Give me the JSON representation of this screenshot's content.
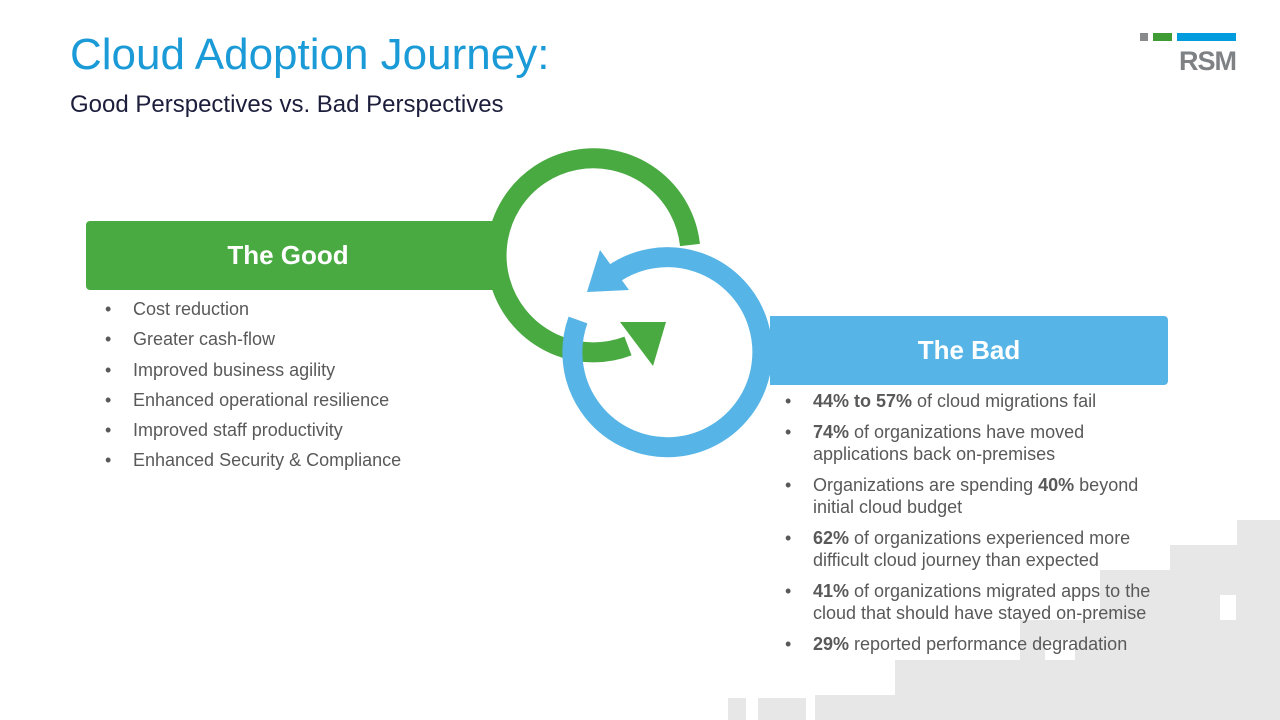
{
  "header": {
    "title": "Cloud Adoption Journey:",
    "subtitle": "Good Perspectives vs. Bad Perspectives",
    "logo": "RSM"
  },
  "good": {
    "heading": "The Good",
    "items": [
      "Cost reduction",
      "Greater cash-flow",
      "Improved business agility",
      "Enhanced operational resilience",
      "Improved staff productivity",
      "Enhanced Security & Compliance"
    ]
  },
  "bad": {
    "heading": "The Bad",
    "items": [
      [
        {
          "b": "44% to 57%"
        },
        {
          "t": " of cloud migrations fail"
        }
      ],
      [
        {
          "b": "74%"
        },
        {
          "t": " of organizations have moved applications back on-premises"
        }
      ],
      [
        {
          "t": "Organizations are spending "
        },
        {
          "b": "40%"
        },
        {
          "t": " beyond initial cloud budget"
        }
      ],
      [
        {
          "b": "62%"
        },
        {
          "t": " of organizations experienced more difficult cloud journey than expected"
        }
      ],
      [
        {
          "b": "41%"
        },
        {
          "t": " of organizations migrated apps to the cloud that should have stayed on-premise"
        }
      ],
      [
        {
          "b": "29%"
        },
        {
          "t": " reported performance degradation"
        }
      ]
    ]
  }
}
